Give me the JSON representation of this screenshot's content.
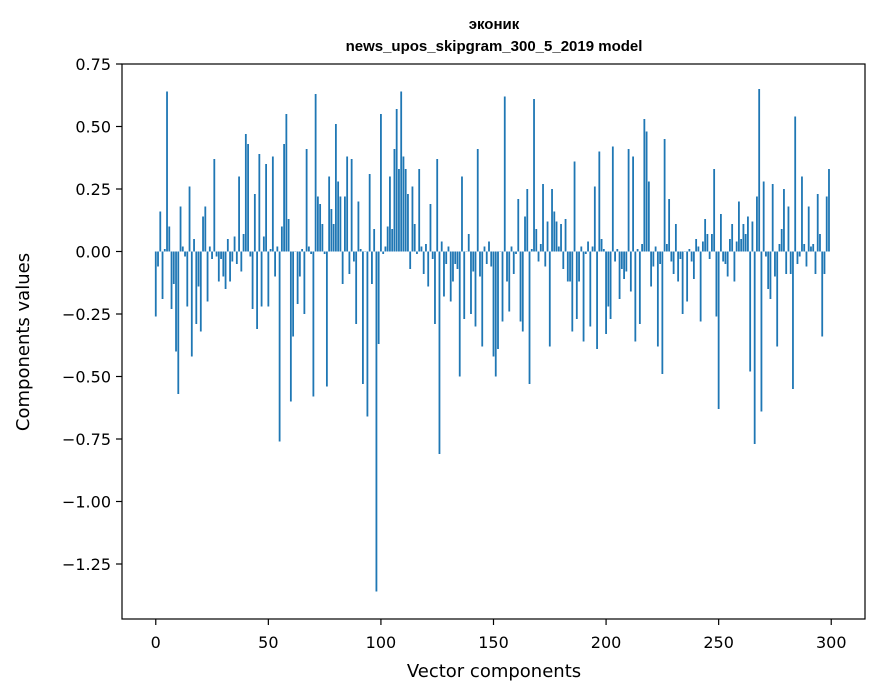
{
  "chart_data": {
    "type": "bar",
    "title": "эконик",
    "subtitle": "news_upos_skipgram_300_5_2019 model",
    "xlabel": "Vector components",
    "ylabel": "Components values",
    "xlim": [
      -15,
      315
    ],
    "ylim": [
      -1.47,
      0.75
    ],
    "x_ticks": [
      {
        "value": 0,
        "label": "0"
      },
      {
        "value": 50,
        "label": "50"
      },
      {
        "value": 100,
        "label": "100"
      },
      {
        "value": 150,
        "label": "150"
      },
      {
        "value": 200,
        "label": "200"
      },
      {
        "value": 250,
        "label": "250"
      },
      {
        "value": 300,
        "label": "300"
      }
    ],
    "y_ticks": [
      {
        "value": 0.75,
        "label": "0.75"
      },
      {
        "value": 0.5,
        "label": "0.50"
      },
      {
        "value": 0.25,
        "label": "0.25"
      },
      {
        "value": 0.0,
        "label": "0.00"
      },
      {
        "value": -0.25,
        "label": "−0.25"
      },
      {
        "value": -0.5,
        "label": "−0.50"
      },
      {
        "value": -0.75,
        "label": "−0.75"
      },
      {
        "value": -1.0,
        "label": "−1.00"
      },
      {
        "value": -1.25,
        "label": "−1.25"
      }
    ],
    "bar_color": "#1f77b4",
    "grid": false,
    "values": [
      -0.26,
      -0.06,
      0.16,
      -0.19,
      0.01,
      0.64,
      0.1,
      -0.23,
      -0.13,
      -0.4,
      -0.57,
      0.18,
      0.02,
      -0.02,
      -0.22,
      0.26,
      -0.42,
      0.05,
      -0.29,
      -0.14,
      -0.32,
      0.14,
      0.18,
      -0.2,
      0.02,
      -0.03,
      0.37,
      -0.02,
      -0.12,
      -0.03,
      -0.1,
      -0.15,
      0.05,
      -0.12,
      -0.04,
      0.06,
      -0.05,
      0.3,
      -0.08,
      0.07,
      0.47,
      0.43,
      -0.02,
      -0.23,
      0.23,
      -0.31,
      0.39,
      -0.22,
      0.06,
      0.35,
      -0.22,
      0.01,
      0.38,
      -0.1,
      0.02,
      -0.76,
      0.1,
      0.43,
      0.55,
      0.13,
      -0.6,
      -0.34,
      0.0,
      -0.21,
      -0.1,
      0.01,
      -0.25,
      0.41,
      0.02,
      -0.01,
      -0.58,
      0.63,
      0.22,
      0.19,
      0.11,
      -0.01,
      -0.54,
      0.3,
      0.17,
      0.11,
      0.51,
      0.28,
      0.22,
      -0.13,
      0.22,
      0.38,
      -0.09,
      0.37,
      -0.04,
      -0.29,
      0.2,
      0.01,
      -0.53,
      0.0,
      -0.66,
      0.31,
      -0.13,
      0.09,
      -1.36,
      -0.37,
      0.55,
      -0.01,
      0.02,
      0.1,
      0.3,
      0.09,
      0.41,
      0.57,
      0.33,
      0.64,
      0.38,
      0.33,
      0.23,
      -0.07,
      0.26,
      0.11,
      -0.01,
      0.33,
      0.02,
      -0.09,
      0.03,
      -0.14,
      0.19,
      -0.03,
      -0.29,
      0.37,
      -0.81,
      0.04,
      -0.18,
      -0.05,
      0.02,
      -0.2,
      -0.12,
      -0.05,
      -0.07,
      -0.5,
      0.3,
      -0.27,
      0.0,
      0.07,
      -0.25,
      -0.08,
      -0.3,
      0.41,
      -0.1,
      -0.38,
      0.02,
      -0.05,
      0.04,
      -0.06,
      -0.42,
      -0.5,
      -0.39,
      0.0,
      -0.28,
      0.62,
      -0.12,
      -0.24,
      0.02,
      -0.09,
      -0.01,
      0.21,
      -0.28,
      -0.32,
      0.14,
      0.25,
      -0.53,
      0.01,
      0.61,
      0.09,
      -0.04,
      0.03,
      0.27,
      -0.06,
      0.12,
      -0.38,
      0.25,
      0.16,
      0.12,
      0.02,
      0.11,
      -0.07,
      0.13,
      -0.12,
      -0.12,
      -0.32,
      0.36,
      -0.27,
      -0.12,
      0.02,
      -0.36,
      -0.01,
      0.04,
      -0.3,
      0.02,
      0.26,
      -0.39,
      0.4,
      0.05,
      0.01,
      -0.33,
      -0.22,
      -0.27,
      0.42,
      -0.04,
      0.01,
      -0.19,
      -0.07,
      -0.11,
      -0.08,
      0.41,
      -0.16,
      0.38,
      -0.36,
      0.01,
      -0.29,
      0.03,
      0.53,
      0.48,
      0.28,
      -0.14,
      -0.06,
      0.02,
      -0.38,
      -0.05,
      -0.49,
      0.45,
      0.03,
      0.21,
      -0.04,
      -0.09,
      0.11,
      -0.12,
      -0.03,
      -0.25,
      0.0,
      -0.2,
      0.01,
      -0.04,
      -0.11,
      0.05,
      0.02,
      -0.28,
      0.04,
      0.13,
      0.07,
      -0.03,
      0.07,
      0.33,
      -0.26,
      -0.63,
      0.15,
      -0.04,
      -0.05,
      -0.1,
      0.05,
      0.11,
      -0.12,
      0.04,
      0.2,
      0.05,
      0.11,
      0.07,
      0.14,
      -0.48,
      0.12,
      -0.77,
      0.22,
      0.65,
      -0.64,
      0.28,
      -0.02,
      -0.15,
      -0.19,
      0.27,
      -0.1,
      -0.38,
      0.03,
      0.09,
      0.25,
      -0.09,
      0.18,
      -0.09,
      -0.55,
      0.54,
      -0.05,
      -0.02,
      0.3,
      0.03,
      -0.06,
      0.18,
      0.02,
      0.03,
      -0.09,
      0.23,
      0.07,
      -0.34,
      -0.09,
      0.22,
      0.33
    ]
  }
}
